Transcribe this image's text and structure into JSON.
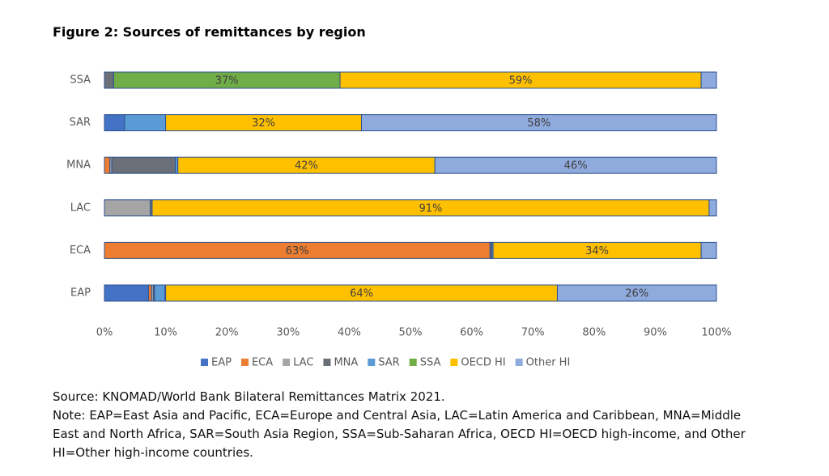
{
  "chart_data": {
    "type": "stacked-bar-horizontal",
    "title": "Figure 2: Sources of remittances by region",
    "categories": [
      "EAP",
      "ECA",
      "LAC",
      "MNA",
      "SAR",
      "SSA"
    ],
    "series": [
      {
        "name": "EAP",
        "color": "#4472c4",
        "values": [
          7.2,
          0,
          0,
          0,
          3.3,
          0
        ],
        "value_labels": [
          null,
          null,
          null,
          null,
          null,
          null
        ]
      },
      {
        "name": "ECA",
        "color": "#ed7d31",
        "values": [
          0.5,
          63,
          0,
          0.9,
          0,
          0
        ],
        "value_labels": [
          null,
          "63%",
          null,
          null,
          null,
          null
        ]
      },
      {
        "name": "LAC",
        "color": "#a5a5a5",
        "values": [
          0.3,
          0,
          7.5,
          0.3,
          0,
          0
        ],
        "value_labels": [
          null,
          null,
          null,
          null,
          null,
          null
        ]
      },
      {
        "name": "MNA",
        "color": "#6b6f78",
        "values": [
          0.2,
          0.3,
          0.3,
          10.4,
          0,
          1.5
        ],
        "value_labels": [
          null,
          null,
          null,
          null,
          null,
          null
        ]
      },
      {
        "name": "SAR",
        "color": "#5b9bd5",
        "values": [
          1.7,
          0.2,
          0,
          0.4,
          6.7,
          0
        ],
        "value_labels": [
          null,
          null,
          null,
          null,
          null,
          null
        ]
      },
      {
        "name": "SSA",
        "color": "#70ad47",
        "values": [
          0.1,
          0,
          0,
          0,
          0,
          37
        ],
        "value_labels": [
          null,
          null,
          null,
          null,
          null,
          "37%"
        ]
      },
      {
        "name": "OECD HI",
        "color": "#ffc000",
        "values": [
          64,
          34,
          91,
          42,
          32,
          59
        ],
        "value_labels": [
          "64%",
          "34%",
          "91%",
          "42%",
          "32%",
          "59%"
        ]
      },
      {
        "name": "Other HI",
        "color": "#8faadc",
        "values": [
          26,
          2.5,
          1.2,
          46,
          58,
          2.5
        ],
        "value_labels": [
          "26%",
          null,
          null,
          "46%",
          "58%",
          null
        ]
      }
    ],
    "xlim": [
      0,
      100
    ],
    "xticks": [
      {
        "value": 0,
        "label": "0%"
      },
      {
        "value": 10,
        "label": "10%"
      },
      {
        "value": 20,
        "label": "20%"
      },
      {
        "value": 30,
        "label": "30%"
      },
      {
        "value": 40,
        "label": "40%"
      },
      {
        "value": 50,
        "label": "50%"
      },
      {
        "value": 60,
        "label": "60%"
      },
      {
        "value": 70,
        "label": "70%"
      },
      {
        "value": 80,
        "label": "80%"
      },
      {
        "value": 90,
        "label": "90%"
      },
      {
        "value": 100,
        "label": "100%"
      }
    ],
    "grid": false,
    "legend": "bottom",
    "source": "Source: KNOMAD/World Bank Bilateral Remittances Matrix 2021.",
    "note": "Note: EAP=East Asia and Pacific, ECA=Europe and Central Asia, LAC=Latin America and Caribbean, MNA=Middle East and North Africa, SAR=South Asia Region, SSA=Sub-Saharan Africa, OECD HI=OECD high-income, and Other HI=Other high-income countries."
  }
}
